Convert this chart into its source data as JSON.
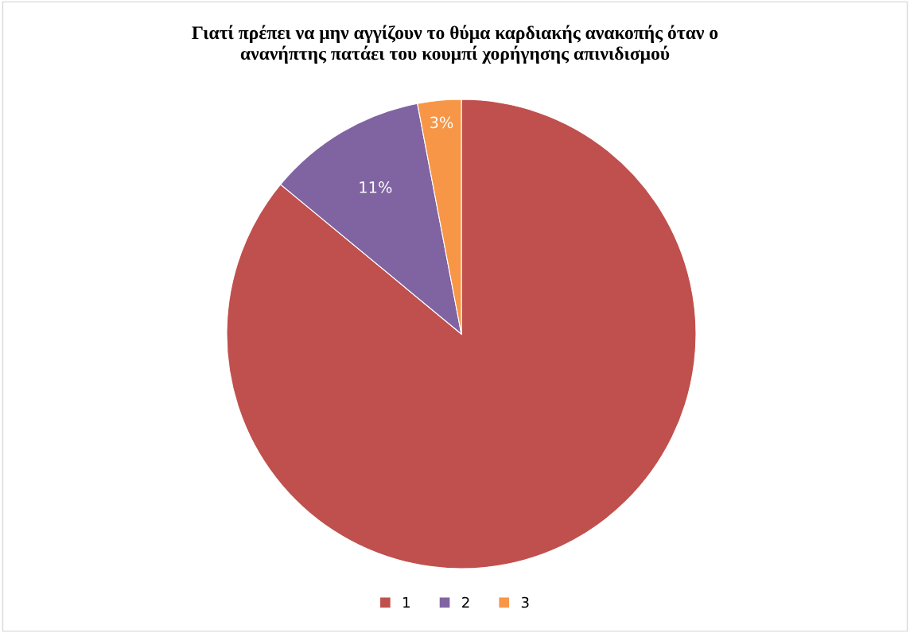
{
  "chart_data": {
    "type": "pie",
    "title": "Γιατί πρέπει να μην αγγίζουν το θύμα καρδιακής ανακοπής όταν ο\nανανήπτης πατάει του κουμπί χορήγησης απινιδισμού",
    "categories": [
      "1",
      "2",
      "3"
    ],
    "values": [
      86,
      11,
      3
    ],
    "colors": [
      "#c0504d",
      "#8064a2",
      "#f79646"
    ],
    "value_labels": [
      null,
      "11%",
      "3%"
    ],
    "legend": "bottom"
  }
}
